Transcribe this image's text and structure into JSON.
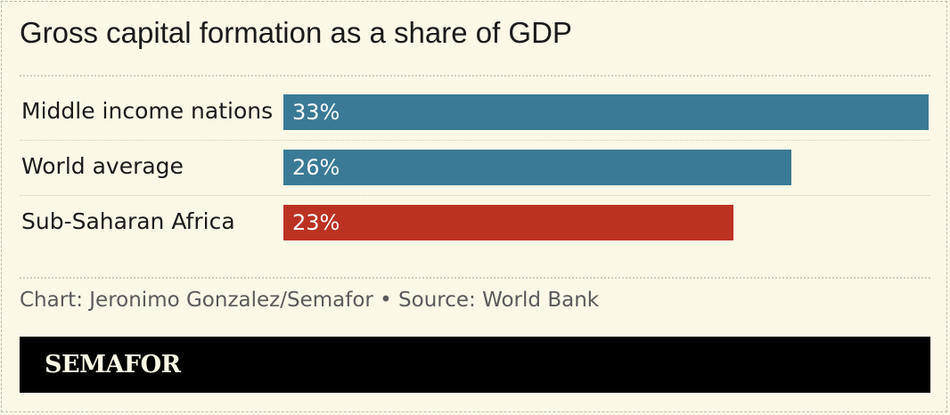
{
  "chart_data": {
    "type": "bar",
    "title": "Gross capital formation as a share of GDP",
    "categories": [
      "Middle income nations",
      "World average",
      "Sub-Saharan Africa"
    ],
    "values": [
      33,
      26,
      23
    ],
    "value_labels": [
      "33%",
      "26%",
      "23%"
    ],
    "colors": [
      "#3a7a96",
      "#3a7a96",
      "#bc3222"
    ],
    "xlim": [
      0,
      33
    ],
    "orientation": "horizontal",
    "grid": false,
    "legend": "none"
  },
  "credit": "Chart: Jeronimo Gonzalez/Semafor • Source: World Bank",
  "logo": "SEMAFOR"
}
